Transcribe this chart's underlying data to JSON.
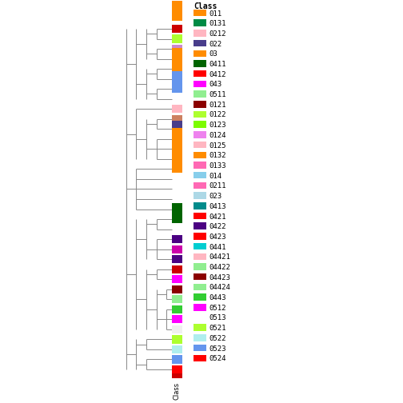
{
  "classes": [
    {
      "label": "011",
      "bar_color": "#CC0000",
      "legend_color": "#FF8C00"
    },
    {
      "label": "0131",
      "bar_color": "#ADFF2F",
      "legend_color": "#008B45"
    },
    {
      "label": "0212",
      "bar_color": "#CC88CC",
      "legend_color": "#FFB6C1"
    },
    {
      "label": "022",
      "bar_color": "#008B45",
      "legend_color": "#483D8B"
    },
    {
      "label": "03",
      "bar_color": "#FF8C00",
      "legend_color": "#FF8C00"
    },
    {
      "label": "0411",
      "bar_color": "#FF69B4",
      "legend_color": "#006400"
    },
    {
      "label": "0412",
      "bar_color": "#6495ED",
      "legend_color": "#FF0000"
    },
    {
      "label": "043",
      "bar_color": "#FF00FF",
      "legend_color": "#FF00FF"
    },
    {
      "label": "0511",
      "bar_color": "#FFB6C1",
      "legend_color": "#90EE90"
    },
    {
      "label": "0121",
      "bar_color": "#CD8060",
      "legend_color": "#8B0000"
    },
    {
      "label": "0122",
      "bar_color": "#ADFF2F",
      "legend_color": "#ADFF2F"
    },
    {
      "label": "0123",
      "bar_color": "#483D8B",
      "legend_color": "#7CFC00"
    },
    {
      "label": "0124",
      "bar_color": "#6495ED",
      "legend_color": "#EE82EE"
    },
    {
      "label": "0125",
      "bar_color": "#FFB6C1",
      "legend_color": "#FFB6C1"
    },
    {
      "label": "0132",
      "bar_color": "#FF8C00",
      "legend_color": "#FF8C00"
    },
    {
      "label": "0133",
      "bar_color": "#FF69B4",
      "legend_color": "#FF69B4"
    },
    {
      "label": "014",
      "bar_color": "#87CEEB",
      "legend_color": "#87CEEB"
    },
    {
      "label": "0211",
      "bar_color": "#FF69B4",
      "legend_color": "#FF69B4"
    },
    {
      "label": "023",
      "bar_color": "#ADD8E6",
      "legend_color": "#ADD8E6"
    },
    {
      "label": "0413",
      "bar_color": "#006400",
      "legend_color": "#008B8B"
    },
    {
      "label": "0421",
      "bar_color": "#FF0000",
      "legend_color": "#FF0000"
    },
    {
      "label": "0422",
      "bar_color": "#4B0082",
      "legend_color": "#4B0082"
    },
    {
      "label": "0423",
      "bar_color": "#CC00AA",
      "legend_color": "#FF0000"
    },
    {
      "label": "0441",
      "bar_color": "#4B0082",
      "legend_color": "#00CED1"
    },
    {
      "label": "04421",
      "bar_color": "#CC0000",
      "legend_color": "#FFB6C1"
    },
    {
      "label": "04422",
      "bar_color": "#FF00FF",
      "legend_color": "#90EE90"
    },
    {
      "label": "04423",
      "bar_color": "#8B0000",
      "legend_color": "#8B0000"
    },
    {
      "label": "04424",
      "bar_color": "#90EE90",
      "legend_color": "#90EE90"
    },
    {
      "label": "0443",
      "bar_color": "#32CD32",
      "legend_color": "#32CD32"
    },
    {
      "label": "0512",
      "bar_color": "#FF00FF",
      "legend_color": "#FF00FF"
    },
    {
      "label": "0513",
      "bar_color": "#F0F0F0",
      "legend_color": "#FFFFFF"
    },
    {
      "label": "0521",
      "bar_color": "#ADFF2F",
      "legend_color": "#ADFF2F"
    },
    {
      "label": "0522",
      "bar_color": "#AFEEEE",
      "legend_color": "#AFEEEE"
    },
    {
      "label": "0523",
      "bar_color": "#6495ED",
      "legend_color": "#6495ED"
    },
    {
      "label": "0524",
      "bar_color": "#FF0000",
      "legend_color": "#FF0000"
    }
  ],
  "top_bar_color": "#FF8C00",
  "bottom_bar_color": "#CC0000",
  "legend_title": "Class",
  "ylabel": "Class",
  "bg_color": "#FFFFFF",
  "dendro_color": "#888888",
  "lw": 0.7
}
